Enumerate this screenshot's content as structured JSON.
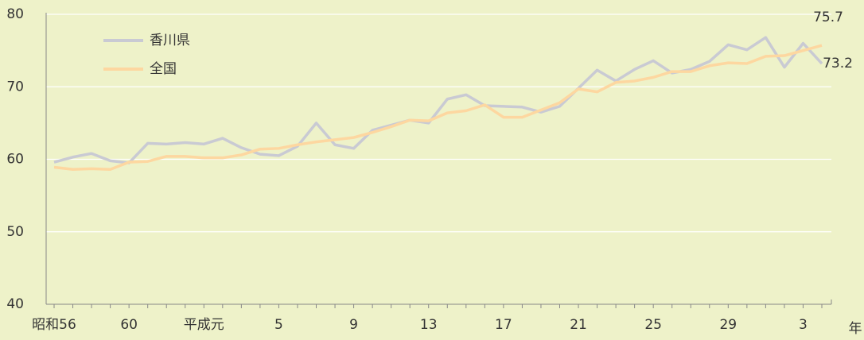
{
  "chart_data": {
    "type": "line",
    "categories": [
      "昭和56",
      null,
      null,
      null,
      "60",
      null,
      null,
      null,
      "平成元",
      null,
      null,
      null,
      "5",
      null,
      null,
      null,
      "9",
      null,
      null,
      null,
      "13",
      null,
      null,
      null,
      "17",
      null,
      null,
      null,
      "21",
      null,
      null,
      null,
      "25",
      null,
      null,
      null,
      "29",
      null,
      null,
      null,
      "3",
      null
    ],
    "series": [
      {
        "name": "香川県",
        "color": "#c9cad3",
        "values": [
          59.6,
          60.3,
          60.8,
          59.8,
          59.5,
          62.2,
          62.1,
          62.3,
          62.1,
          62.9,
          61.6,
          60.7,
          60.5,
          61.8,
          65.0,
          62.0,
          61.5,
          64.0,
          64.7,
          65.4,
          65.0,
          68.3,
          68.9,
          67.4,
          67.3,
          67.2,
          66.5,
          67.3,
          69.8,
          72.3,
          70.8,
          72.4,
          73.6,
          71.9,
          72.4,
          73.5,
          75.8,
          75.1,
          76.8,
          72.7,
          76.0,
          73.2
        ]
      },
      {
        "name": "全国",
        "color": "#fdd7a0",
        "values": [
          58.9,
          58.6,
          58.7,
          58.6,
          59.6,
          59.7,
          60.4,
          60.4,
          60.2,
          60.2,
          60.6,
          61.4,
          61.5,
          62.0,
          62.4,
          62.7,
          63.0,
          63.7,
          64.5,
          65.4,
          65.3,
          66.4,
          66.7,
          67.5,
          65.8,
          65.8,
          66.8,
          67.8,
          69.7,
          69.3,
          70.6,
          70.8,
          71.3,
          72.1,
          72.1,
          72.9,
          73.3,
          73.2,
          74.2,
          74.3,
          75.0,
          75.7
        ]
      }
    ],
    "x_label": "年",
    "ylim": [
      40,
      80
    ],
    "yticks": [
      40,
      50,
      60,
      70,
      80
    ],
    "grid": true,
    "legend": "upper left"
  }
}
